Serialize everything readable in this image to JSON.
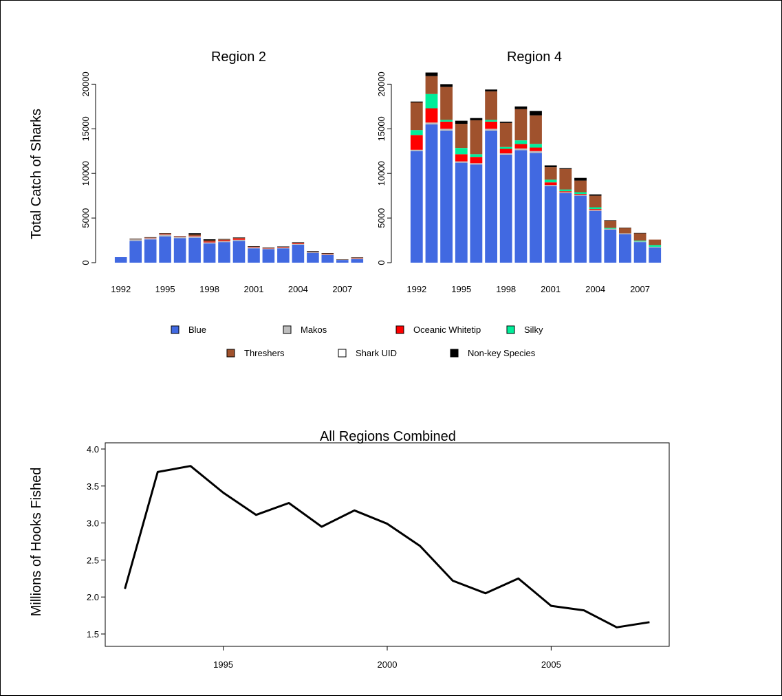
{
  "colors": {
    "Blue": "#4169E1",
    "Makos": "#BEBEBE",
    "Oceanic Whitetip": "#FF0000",
    "Silky": "#00EE9A",
    "Threshers": "#A0522D",
    "Shark UID": "#FFFFFF",
    "Non-key Species": "#000000"
  },
  "legend": {
    "items": [
      "Blue",
      "Makos",
      "Oceanic Whitetip",
      "Silky",
      "Threshers",
      "Shark UID",
      "Non-key Species"
    ]
  },
  "shared": {
    "ylabel": "Total Catch of Sharks"
  },
  "chart_data": [
    {
      "type": "bar",
      "stacked": true,
      "title": "Region  2",
      "ylabel": "Total Catch of Sharks",
      "categories": [
        "1992",
        "1993",
        "1994",
        "1995",
        "1996",
        "1997",
        "1998",
        "1999",
        "2000",
        "2001",
        "2002",
        "2003",
        "2004",
        "2005",
        "2006",
        "2007",
        "2008"
      ],
      "xtick_labels": [
        "1992",
        "1995",
        "1998",
        "2001",
        "2004",
        "2007"
      ],
      "ylim": [
        0,
        21000
      ],
      "yticks": [
        0,
        5000,
        10000,
        15000,
        20000
      ],
      "series": [
        {
          "name": "Blue",
          "values": [
            620,
            2450,
            2600,
            2950,
            2750,
            2800,
            2150,
            2300,
            2450,
            1600,
            1500,
            1600,
            2000,
            1100,
            850,
            300,
            400
          ]
        },
        {
          "name": "Makos",
          "values": [
            0,
            150,
            150,
            180,
            120,
            150,
            120,
            120,
            120,
            100,
            80,
            80,
            100,
            60,
            80,
            20,
            80
          ]
        },
        {
          "name": "Oceanic Whitetip",
          "values": [
            0,
            0,
            30,
            50,
            30,
            50,
            80,
            80,
            120,
            50,
            30,
            50,
            60,
            20,
            40,
            0,
            30
          ]
        },
        {
          "name": "Silky",
          "values": [
            0,
            0,
            0,
            0,
            0,
            0,
            0,
            0,
            0,
            0,
            0,
            0,
            0,
            0,
            0,
            0,
            0
          ]
        },
        {
          "name": "Threshers",
          "values": [
            0,
            50,
            50,
            100,
            50,
            150,
            150,
            100,
            80,
            50,
            40,
            50,
            80,
            30,
            60,
            20,
            60
          ]
        },
        {
          "name": "Shark UID",
          "values": [
            0,
            0,
            0,
            0,
            0,
            0,
            0,
            0,
            0,
            0,
            0,
            0,
            0,
            0,
            0,
            0,
            0
          ]
        },
        {
          "name": "Non-key Species",
          "values": [
            0,
            50,
            30,
            30,
            30,
            150,
            120,
            50,
            50,
            50,
            50,
            40,
            50,
            80,
            50,
            30,
            30
          ]
        }
      ]
    },
    {
      "type": "bar",
      "stacked": true,
      "title": "Region  4",
      "categories": [
        "1992",
        "1993",
        "1994",
        "1995",
        "1996",
        "1997",
        "1998",
        "1999",
        "2000",
        "2001",
        "2002",
        "2003",
        "2004",
        "2005",
        "2006",
        "2007",
        "2008"
      ],
      "xtick_labels": [
        "1992",
        "1995",
        "1998",
        "2001",
        "2004",
        "2007"
      ],
      "ylim": [
        0,
        21000
      ],
      "yticks": [
        0,
        5000,
        10000,
        15000,
        20000
      ],
      "series": [
        {
          "name": "Blue",
          "values": [
            12500,
            15500,
            14800,
            11200,
            11000,
            14800,
            12100,
            12600,
            12300,
            8600,
            7800,
            7500,
            5800,
            3700,
            3200,
            2300,
            1700
          ]
        },
        {
          "name": "Makos",
          "values": [
            150,
            200,
            200,
            150,
            150,
            200,
            150,
            200,
            200,
            100,
            100,
            100,
            100,
            100,
            80,
            80,
            80
          ]
        },
        {
          "name": "Oceanic Whitetip",
          "values": [
            1650,
            1600,
            800,
            800,
            700,
            800,
            500,
            500,
            400,
            300,
            100,
            100,
            100,
            0,
            0,
            0,
            0
          ]
        },
        {
          "name": "Silky",
          "values": [
            550,
            1600,
            200,
            700,
            300,
            200,
            200,
            400,
            400,
            300,
            200,
            200,
            200,
            100,
            0,
            100,
            200
          ]
        },
        {
          "name": "Threshers",
          "values": [
            3100,
            2000,
            3700,
            2700,
            3800,
            3200,
            2700,
            3500,
            3200,
            1400,
            2300,
            1300,
            1300,
            800,
            600,
            800,
            600
          ]
        },
        {
          "name": "Shark UID",
          "values": [
            0,
            0,
            0,
            0,
            0,
            0,
            0,
            0,
            0,
            0,
            0,
            0,
            0,
            0,
            0,
            0,
            0
          ]
        },
        {
          "name": "Non-key Species",
          "values": [
            100,
            400,
            300,
            350,
            250,
            200,
            150,
            300,
            500,
            200,
            100,
            300,
            150,
            50,
            50,
            50,
            0
          ]
        }
      ]
    },
    {
      "type": "line",
      "title": "All Regions Combined",
      "ylabel": "Millions of Hooks Fished",
      "x": [
        1992,
        1993,
        1994,
        1995,
        1996,
        1997,
        1998,
        1999,
        2000,
        2001,
        2002,
        2003,
        2004,
        2005,
        2006,
        2007,
        2008
      ],
      "y": [
        2.11,
        3.69,
        3.77,
        3.41,
        3.11,
        3.27,
        2.95,
        3.17,
        2.99,
        2.69,
        2.22,
        2.05,
        2.25,
        1.88,
        1.82,
        1.59,
        1.66
      ],
      "xticks": [
        1995,
        2000,
        2005
      ],
      "ylim": [
        1.5,
        4.0
      ],
      "yticks": [
        "1.5",
        "2.0",
        "2.5",
        "3.0",
        "3.5",
        "4.0"
      ],
      "grid": false,
      "color": "#000000"
    }
  ]
}
